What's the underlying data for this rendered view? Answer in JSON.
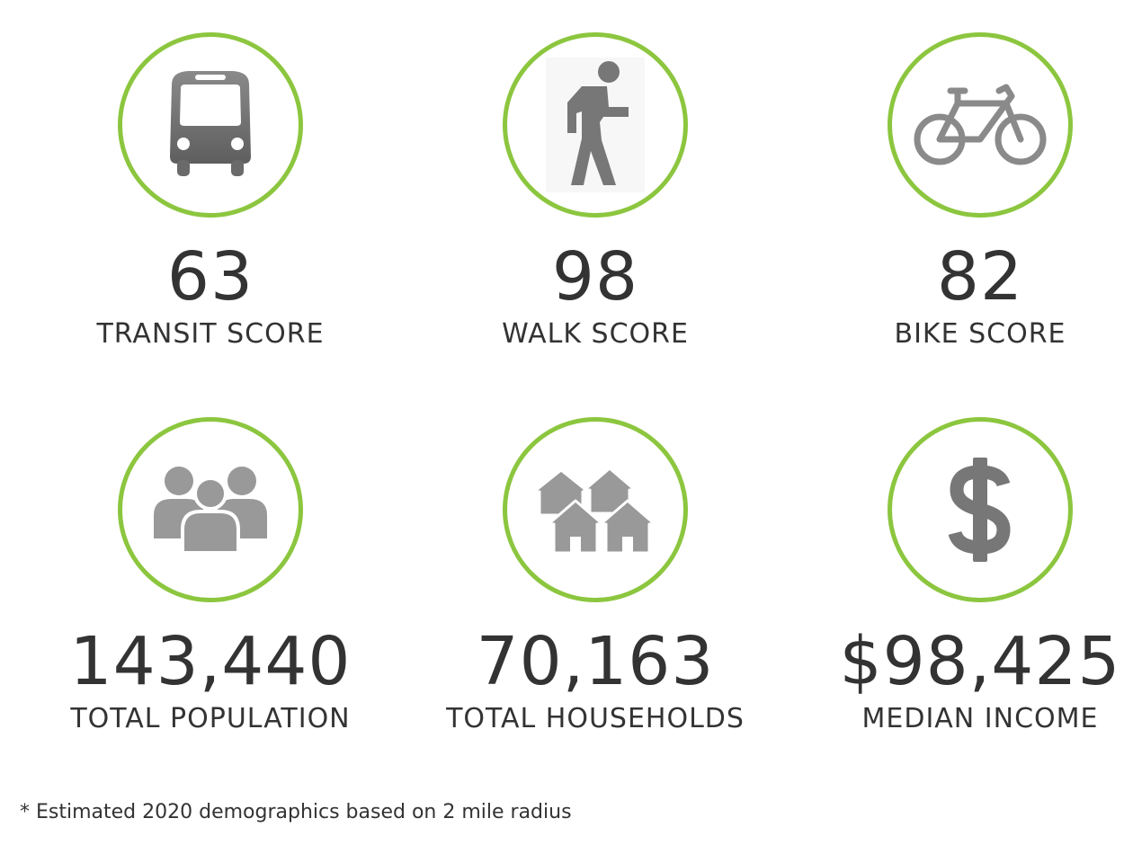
{
  "stats": [
    {
      "icon": "bus-icon",
      "value": "63",
      "label": "TRANSIT SCORE"
    },
    {
      "icon": "pedestrian-icon",
      "value": "98",
      "label": "WALK SCORE"
    },
    {
      "icon": "bicycle-icon",
      "value": "82",
      "label": "BIKE SCORE"
    },
    {
      "icon": "people-group-icon",
      "value": "143,440",
      "label": "TOTAL POPULATION"
    },
    {
      "icon": "houses-icon",
      "value": "70,163",
      "label": "TOTAL HOUSEHOLDS"
    },
    {
      "icon": "dollar-sign-icon",
      "value": "$98,425",
      "label": "MEDIAN INCOME"
    }
  ],
  "colors": {
    "ring": "#8cc63f",
    "icon": "#7a7a7a",
    "icon_light": "#999999",
    "text": "#333333"
  },
  "footnote": "* Estimated 2020 demographics based on 2 mile radius"
}
